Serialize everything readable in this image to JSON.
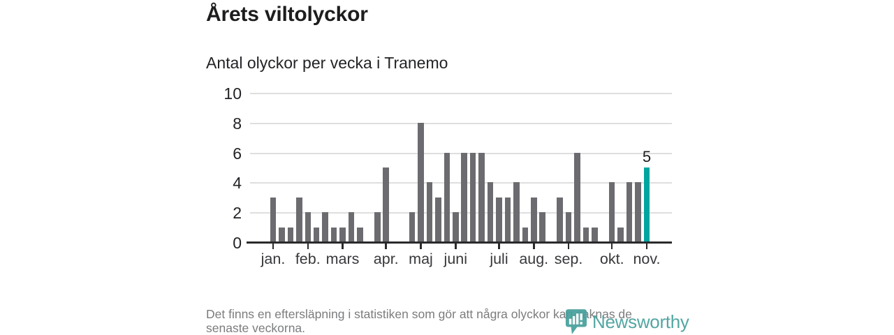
{
  "header": {
    "title": "Årets viltolyckor",
    "subtitle": "Antal olyckor per vecka i Tranemo"
  },
  "chart_data": {
    "type": "bar",
    "title": "Årets viltolyckor",
    "subtitle": "Antal olyckor per vecka i Tranemo",
    "x_unit": "vecka (week), jan–nov",
    "values": [
      3,
      1,
      1,
      3,
      2,
      1,
      2,
      1,
      1,
      2,
      1,
      0,
      2,
      5,
      0,
      0,
      2,
      8,
      4,
      3,
      6,
      2,
      6,
      6,
      6,
      4,
      3,
      3,
      4,
      1,
      3,
      2,
      0,
      3,
      2,
      6,
      1,
      1,
      0,
      4,
      1,
      4,
      4,
      5
    ],
    "month_ticks": [
      {
        "label": "jan.",
        "week": 0
      },
      {
        "label": "feb.",
        "week": 4
      },
      {
        "label": "mars",
        "week": 8
      },
      {
        "label": "apr.",
        "week": 13
      },
      {
        "label": "maj",
        "week": 17
      },
      {
        "label": "juni",
        "week": 21
      },
      {
        "label": "juli",
        "week": 26
      },
      {
        "label": "aug.",
        "week": 30
      },
      {
        "label": "sep.",
        "week": 34
      },
      {
        "label": "okt.",
        "week": 39
      },
      {
        "label": "nov.",
        "week": 43
      }
    ],
    "ylim": [
      0,
      10
    ],
    "yticks": [
      0,
      2,
      4,
      6,
      8,
      10
    ],
    "grid": "horizontal",
    "legend": "none",
    "highlight": {
      "index": 43,
      "label": "5"
    },
    "bar_color": "#6c6c70",
    "highlight_color": "#00a5a0"
  },
  "footer": {
    "lines": [
      "Det finns en eftersläpning i statistiken som gör att några olyckor kan saknas de",
      "senaste veckorna."
    ]
  },
  "logo": {
    "name": "Newsworthy",
    "color": "#47a09b"
  }
}
